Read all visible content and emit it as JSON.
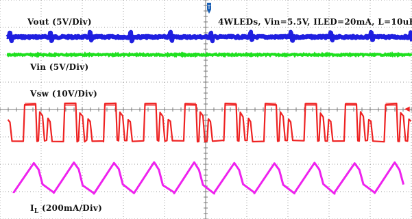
{
  "chart_data": {
    "type": "line",
    "title": "",
    "annotation": "4WLEDs, Vin=5.5V, ILED=20mA, L=10uH",
    "grid": true,
    "grid_divisions": {
      "x": 10,
      "y": 8
    },
    "series": [
      {
        "name": "Vout",
        "scale": "(5V/Div)",
        "color": "#1f1fe0",
        "shape": "dc level with periodic switching spikes",
        "spike_period_div": 0.975
      },
      {
        "name": "Vin",
        "scale": "(5V/Div)",
        "color": "#1fe01f",
        "shape": "dc level"
      },
      {
        "name": "Vsw",
        "scale": "(10V/Div)",
        "color": "#ee2222",
        "shape": "switching pulses with ringing",
        "period_div": 0.975
      },
      {
        "name": "IL",
        "label_main": "I",
        "label_sub": "L",
        "scale": "(200mA/Div)",
        "color": "#ee22ee",
        "shape": "triangle ripple",
        "period_div": 0.975
      }
    ]
  },
  "labels": {
    "vout": "Vout  (5V/Div)",
    "vin": "Vin  (5V/Div)",
    "vsw": "Vsw  (10V/Div)",
    "il_main": "I",
    "il_sub": "L",
    "il_scale": "  (200mA/Div)",
    "conditions": "4WLEDs, Vin=5.5V, ILED=20mA, L=10uH"
  },
  "markers": {
    "trigger": "T",
    "channel_arrow": "◀"
  }
}
